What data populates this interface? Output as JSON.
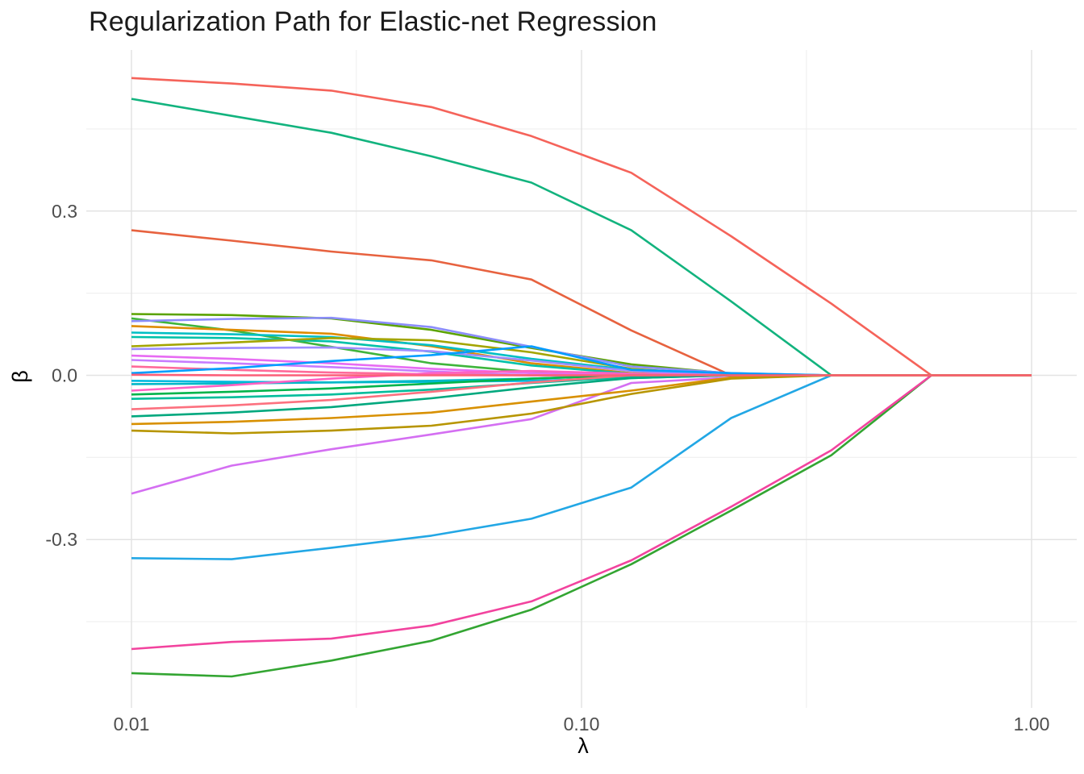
{
  "chart": {
    "title": "Regularization Path for Elastic-net Regression",
    "xlabel": "λ",
    "ylabel": "β"
  },
  "chart_data": {
    "type": "line",
    "title": "Regularization Path for Elastic-net Regression",
    "xlabel": "λ",
    "ylabel": "β",
    "x_scale": "log10",
    "grid": true,
    "legend": false,
    "xlim": [
      0.0079,
      1.27
    ],
    "ylim": [
      -0.606,
      0.594
    ],
    "x_ticks": {
      "values": [
        0.01,
        0.1,
        1.0
      ],
      "labels": [
        "0.01",
        "0.10",
        "1.00"
      ]
    },
    "x_minor": [
      0.0316,
      0.316
    ],
    "y_ticks": {
      "values": [
        0.3,
        0.0,
        -0.3
      ],
      "labels": [
        "0.3",
        "0.0",
        "-0.3"
      ]
    },
    "y_minor": [
      0.45,
      0.15,
      -0.15,
      -0.45
    ],
    "x": [
      0.01,
      0.0167,
      0.0278,
      0.0464,
      0.0774,
      0.129,
      0.215,
      0.359,
      0.599,
      1.0
    ],
    "series": [
      {
        "color": "#F5635A",
        "values": [
          0.543,
          0.533,
          0.52,
          0.49,
          0.437,
          0.37,
          0.254,
          0.131,
          0,
          0
        ]
      },
      {
        "color": "#12B37E",
        "values": [
          0.505,
          0.474,
          0.443,
          0.4,
          0.352,
          0.265,
          0.135,
          0,
          0,
          0
        ]
      },
      {
        "color": "#E7623F",
        "values": [
          0.265,
          0.246,
          0.226,
          0.21,
          0.175,
          0.082,
          0,
          0,
          0,
          0
        ]
      },
      {
        "color": "#33A532",
        "values": [
          -0.544,
          -0.55,
          -0.521,
          -0.485,
          -0.428,
          -0.345,
          -0.247,
          -0.146,
          0,
          0
        ]
      },
      {
        "color": "#F2439E",
        "values": [
          -0.5,
          -0.487,
          -0.481,
          -0.457,
          -0.413,
          -0.338,
          -0.24,
          -0.137,
          0,
          0
        ]
      },
      {
        "color": "#22A7E5",
        "values": [
          -0.334,
          -0.336,
          -0.315,
          -0.293,
          -0.262,
          -0.205,
          -0.078,
          0,
          0,
          0
        ]
      },
      {
        "color": "#D46FF2",
        "values": [
          -0.216,
          -0.165,
          -0.135,
          -0.108,
          -0.08,
          -0.014,
          -0.004,
          0,
          0,
          0
        ]
      },
      {
        "color": "#5BA300",
        "values": [
          0.112,
          0.11,
          0.104,
          0.083,
          0.05,
          0.02,
          0.003,
          0,
          0,
          0
        ]
      },
      {
        "color": "#3FB53C",
        "values": [
          0.104,
          0.082,
          0.052,
          0.022,
          0.006,
          0,
          0,
          0,
          0,
          0
        ]
      },
      {
        "color": "#8B8DFB",
        "values": [
          0.099,
          0.103,
          0.105,
          0.088,
          0.052,
          0.016,
          0.004,
          0,
          0,
          0
        ]
      },
      {
        "color": "#DE8C00",
        "values": [
          0.09,
          0.083,
          0.076,
          0.053,
          0.022,
          0.004,
          0,
          0,
          0,
          0
        ]
      },
      {
        "color": "#00BFC4",
        "values": [
          0.078,
          0.075,
          0.07,
          0.055,
          0.03,
          0.01,
          0,
          0,
          0,
          0
        ]
      },
      {
        "color": "#00C1A9",
        "values": [
          0.07,
          0.068,
          0.062,
          0.043,
          0.018,
          0.003,
          0,
          0,
          0,
          0
        ]
      },
      {
        "color": "#A3A500",
        "values": [
          0.053,
          0.06,
          0.068,
          0.064,
          0.042,
          0.012,
          0,
          0,
          0,
          0
        ]
      },
      {
        "color": "#9C8DFF",
        "values": [
          0.048,
          0.05,
          0.051,
          0.044,
          0.027,
          0.008,
          0,
          0,
          0,
          0
        ]
      },
      {
        "color": "#E76BF3",
        "values": [
          0.036,
          0.03,
          0.022,
          0.012,
          0.004,
          0,
          0,
          0,
          0,
          0
        ]
      },
      {
        "color": "#C77CFF",
        "values": [
          0.028,
          0.022,
          0.015,
          0.007,
          0,
          0,
          0,
          0,
          0,
          0
        ]
      },
      {
        "color": "#FF6A99",
        "values": [
          0.016,
          0.01,
          0.005,
          0.002,
          0,
          0,
          0,
          0,
          0,
          0
        ]
      },
      {
        "color": "#009DFF",
        "values": [
          0.004,
          0.013,
          0.026,
          0.037,
          0.053,
          0.01,
          0.004,
          0,
          0,
          0
        ]
      },
      {
        "color": "#00BAE0",
        "values": [
          -0.01,
          -0.012,
          -0.013,
          -0.012,
          -0.01,
          -0.005,
          0,
          0,
          0,
          0
        ]
      },
      {
        "color": "#00B8C8",
        "values": [
          -0.016,
          -0.015,
          -0.013,
          -0.01,
          -0.006,
          0,
          0,
          0,
          0,
          0
        ]
      },
      {
        "color": "#FF61C3",
        "values": [
          -0.028,
          -0.018,
          -0.006,
          0.004,
          0.008,
          0.003,
          0,
          0,
          0,
          0
        ]
      },
      {
        "color": "#00B44B",
        "values": [
          -0.035,
          -0.03,
          -0.024,
          -0.015,
          -0.006,
          0,
          0,
          0,
          0,
          0
        ]
      },
      {
        "color": "#00BD9B",
        "values": [
          -0.043,
          -0.04,
          -0.035,
          -0.026,
          -0.014,
          -0.003,
          0,
          0,
          0,
          0
        ]
      },
      {
        "color": "#FC717F",
        "values": [
          -0.062,
          -0.055,
          -0.045,
          -0.03,
          -0.013,
          0,
          0,
          0,
          0,
          0
        ]
      },
      {
        "color": "#00A87E",
        "values": [
          -0.075,
          -0.068,
          -0.058,
          -0.042,
          -0.022,
          -0.005,
          0,
          0,
          0,
          0
        ]
      },
      {
        "color": "#D89000",
        "values": [
          -0.089,
          -0.085,
          -0.078,
          -0.068,
          -0.048,
          -0.028,
          -0.004,
          0,
          0,
          0
        ]
      },
      {
        "color": "#B79500",
        "values": [
          -0.101,
          -0.106,
          -0.101,
          -0.092,
          -0.07,
          -0.034,
          -0.006,
          0,
          0,
          0
        ]
      },
      {
        "color": "#FC5E78",
        "values": [
          0.001,
          0,
          0,
          0,
          0,
          0,
          0,
          0,
          0,
          0
        ]
      }
    ],
    "style": {
      "grid_major_color": "#E3E3E3",
      "grid_minor_color": "#EFEFEF",
      "tick_label_color": "#4d4d4d",
      "background": "#ffffff",
      "line_width": 2.6
    }
  }
}
